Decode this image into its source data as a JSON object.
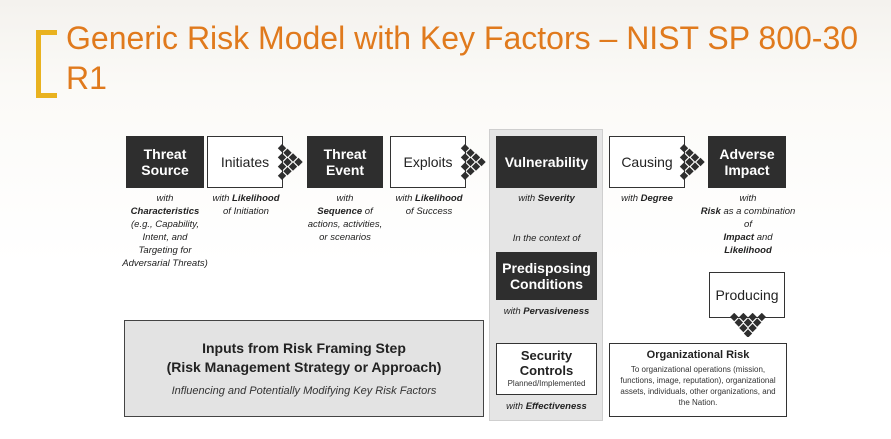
{
  "title": "Generic Risk Model with Key Factors – NIST SP 800-30 R1",
  "colors": {
    "title": "#e07a1d",
    "bracket": "#e9b21f",
    "dark_box": "#2e2e2e",
    "context_column": "#e5e5e5"
  },
  "boxes": {
    "threat_source": "Threat Source",
    "initiates": "Initiates",
    "threat_event": "Threat Event",
    "exploits": "Exploits",
    "vulnerability": "Vulnerability",
    "causing": "Causing",
    "adverse_impact": "Adverse Impact",
    "predisposing_conditions": "Predisposing Conditions",
    "producing": "Producing"
  },
  "captions": {
    "threat_source_with": "with",
    "threat_source_key": "Characteristics",
    "threat_source_rest": "(e.g., Capability, Intent, and Targeting for Adversarial Threats)",
    "initiates_with": "with",
    "initiates_key": "Likelihood",
    "initiates_rest": "of Initiation",
    "threat_event_with": "with",
    "threat_event_key": "Sequence",
    "threat_event_rest": "of actions, activities, or scenarios",
    "exploits_with": "with",
    "exploits_key": "Likelihood",
    "exploits_rest": "of Success",
    "vulnerability_with": "with",
    "vulnerability_key": "Severity",
    "context": "In the context of",
    "predisposing_with": "with",
    "predisposing_key": "Pervasiveness",
    "causing_with": "with",
    "causing_key": "Degree",
    "adverse_with": "with",
    "adverse_key1": "Risk",
    "adverse_mid": "as a combination of",
    "adverse_key2": "Impact",
    "adverse_and": "and",
    "adverse_key3": "Likelihood",
    "security_with": "with",
    "security_key": "Effectiveness"
  },
  "inputs": {
    "heading_line1": "Inputs from Risk Framing Step",
    "heading_line2": "(Risk Management Strategy or Approach)",
    "subtitle": "Influencing and Potentially Modifying Key Risk Factors"
  },
  "security_controls": {
    "heading": "Security Controls",
    "subtitle": "Planned/Implemented"
  },
  "organizational_risk": {
    "heading": "Organizational Risk",
    "body": "To organizational operations (mission, functions, image, reputation), organizational assets, individuals, other organizations, and the Nation."
  }
}
